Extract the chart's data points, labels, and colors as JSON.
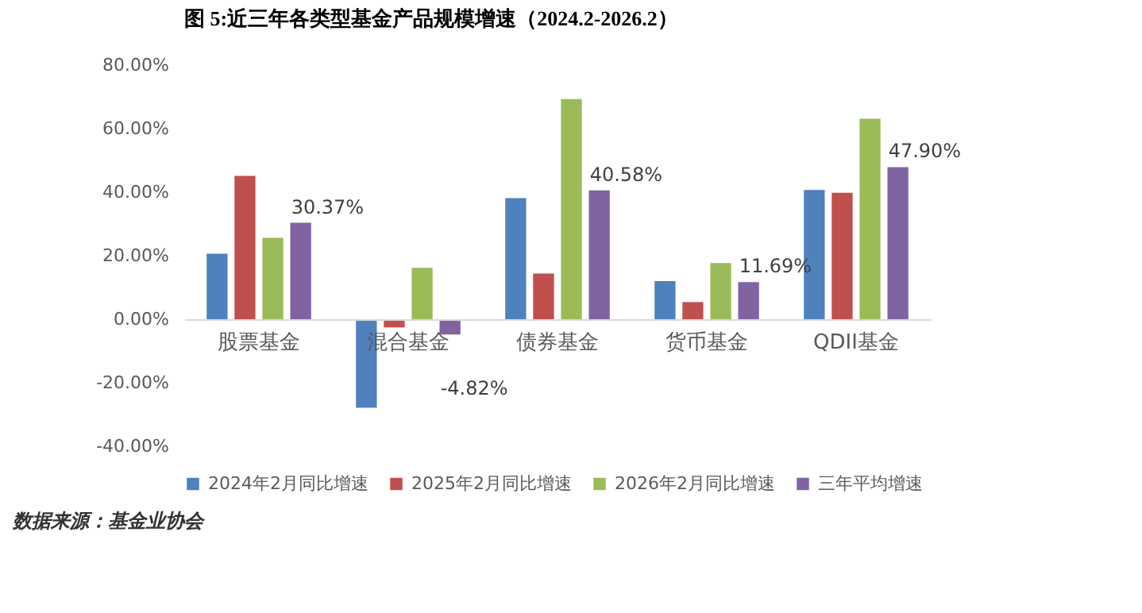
{
  "chart_data": {
    "type": "bar",
    "title": "图 5:近三年各类型基金产品规模增速（2024.2-2026.2）",
    "categories": [
      "股票基金",
      "混合基金",
      "债券基金",
      "货币基金",
      "QDII基金"
    ],
    "series": [
      {
        "name": "2024年2月同比增速",
        "color": "#4f81bd",
        "values": [
          20.6,
          -27.9,
          38.1,
          12.0,
          40.7
        ]
      },
      {
        "name": "2025年2月同比增速",
        "color": "#c0504d",
        "values": [
          45.1,
          -2.6,
          14.4,
          5.4,
          39.8
        ]
      },
      {
        "name": "2026年2月同比增速",
        "color": "#9bbb59",
        "values": [
          25.6,
          16.2,
          69.3,
          17.7,
          63.1
        ]
      },
      {
        "name": "三年平均增速",
        "color": "#8064a2",
        "values": [
          30.37,
          -4.82,
          40.58,
          11.69,
          47.9
        ],
        "value_labels": [
          "30.37%",
          "-4.82%",
          "40.58%",
          "11.69%",
          "47.90%"
        ]
      }
    ],
    "ylim": [
      -40,
      80
    ],
    "yticks": [
      {
        "value": -40,
        "label": "-40.00%"
      },
      {
        "value": -20,
        "label": "-20.00%"
      },
      {
        "value": 0,
        "label": "0.00%"
      },
      {
        "value": 20,
        "label": "20.00%"
      },
      {
        "value": 40,
        "label": "40.00%"
      },
      {
        "value": 60,
        "label": "60.00%"
      },
      {
        "value": 80,
        "label": "80.00%"
      }
    ],
    "grid": false,
    "legend": "bottom",
    "annotations": [
      "数据来源：基金业协会"
    ]
  }
}
